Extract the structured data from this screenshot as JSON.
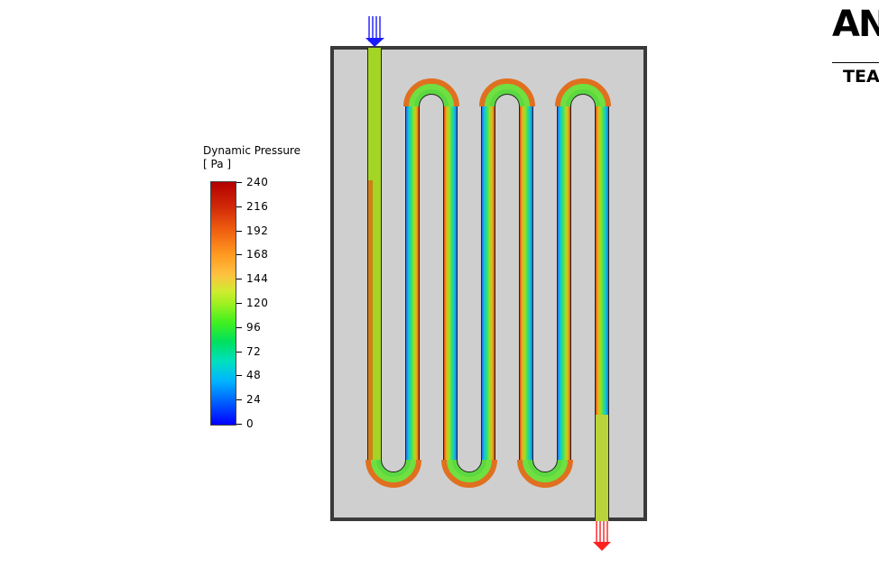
{
  "legend": {
    "title": "Dynamic Pressure",
    "unit": "[ Pa ]",
    "ticks": [
      "240",
      "216",
      "192",
      "168",
      "144",
      "120",
      "96",
      "72",
      "48",
      "24",
      "0"
    ],
    "min": 0,
    "max": 240
  },
  "logo": {
    "text": "AN",
    "subtext": "TEA"
  },
  "colors": {
    "plate": "#cfcfcf",
    "plate_border": "#3a3a3a",
    "inlet_arrows": "#1a1aff",
    "outlet_arrows": "#ff2020",
    "inlet_pipe": "#a4d424",
    "outlet_pipe": "#b8d43a"
  },
  "icons": {
    "inlet": "inlet-flow-arrows-icon",
    "outlet": "outlet-flow-arrows-icon"
  }
}
